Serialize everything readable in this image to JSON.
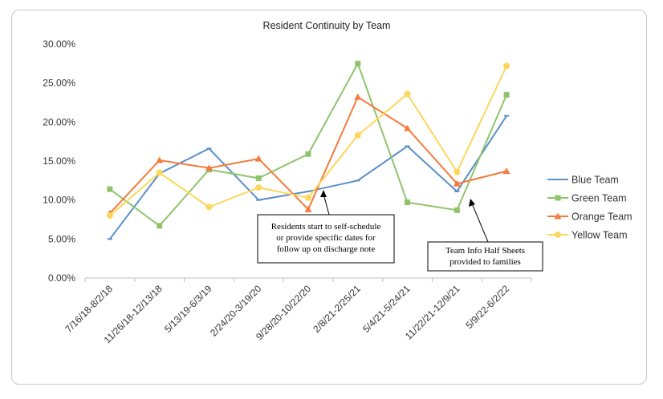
{
  "chart_data": {
    "type": "line",
    "title": "Resident Continuity by Team",
    "xlabel": "",
    "ylabel": "",
    "ylim": [
      0,
      0.3
    ],
    "yticks": [
      "0.00%",
      "5.00%",
      "10.00%",
      "15.00%",
      "20.00%",
      "25.00%",
      "30.00%"
    ],
    "categories": [
      "7/16/18-8/2/18",
      "11/26/18-12/13/18",
      "5/13/19-6/3/19",
      "2/24/20-3/19/20",
      "9/28/20-10/22/20",
      "2/8/21-2/25/21",
      "5/4/21-5/24/21",
      "11/22/21-12/9/21",
      "5/9/22-6/2/22"
    ],
    "legend_position": "right",
    "grid": false,
    "series": [
      {
        "name": "Blue Team",
        "color": "#5b8fc9",
        "marker": "dash",
        "values": [
          0.05,
          0.134,
          0.166,
          0.1,
          0.111,
          0.125,
          0.169,
          0.111,
          0.208
        ]
      },
      {
        "name": "Green Team",
        "color": "#8fc46c",
        "marker": "square",
        "values": [
          0.114,
          0.067,
          0.139,
          0.128,
          0.159,
          0.275,
          0.097,
          0.087,
          0.235
        ]
      },
      {
        "name": "Orange Team",
        "color": "#f47b3c",
        "marker": "triangle",
        "values": [
          0.083,
          0.151,
          0.141,
          0.153,
          0.088,
          0.232,
          0.192,
          0.121,
          0.137
        ]
      },
      {
        "name": "Yellow Team",
        "color": "#fbd75b",
        "marker": "circle",
        "values": [
          0.08,
          0.135,
          0.091,
          0.116,
          0.103,
          0.183,
          0.236,
          0.136,
          0.272
        ]
      }
    ],
    "annotations": [
      {
        "lines": [
          "Residents start to self-schedule",
          "or provide specific dates for",
          "follow up on discharge note"
        ],
        "category_index": 4
      },
      {
        "lines": [
          "Team Info Half Sheets",
          "provided to families"
        ],
        "category_index": 7
      }
    ]
  }
}
